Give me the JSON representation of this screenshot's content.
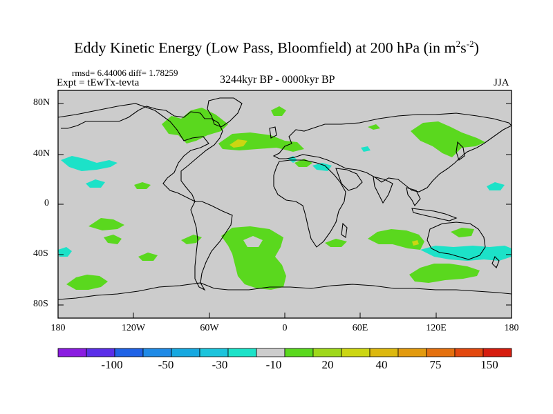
{
  "title": {
    "main": "Eddy Kinetic Energy (Low Pass, Bloomfield) at 200 hPa (in m",
    "sup1": "2",
    "s": "s",
    "sup2": "-2",
    "close": ")"
  },
  "stats": "rmsd= 6.44006  diff= 1.78259",
  "experiment": "Expt = tEwTx-tevta",
  "period": "3244kyr BP - 0000kyr BP",
  "season": "JJA",
  "axes": {
    "y_ticks": [
      "80N",
      "40N",
      "0",
      "40S",
      "80S"
    ],
    "x_ticks": [
      "180",
      "120W",
      "60W",
      "0",
      "60E",
      "120E",
      "180"
    ]
  },
  "colorbar": {
    "colors": [
      "#8a1ce0",
      "#5a2ee8",
      "#1f62e6",
      "#1f8ae6",
      "#16a8e0",
      "#1cc4dc",
      "#1ce2c8",
      "#cccccc",
      "#5ad81e",
      "#9ed81a",
      "#ccd612",
      "#dcb80e",
      "#e29a0e",
      "#e4700e",
      "#e2480e",
      "#d61c0e"
    ],
    "labels": [
      "-100",
      "-50",
      "-30",
      "-10",
      "20",
      "40",
      "75",
      "150"
    ]
  },
  "map_colors": {
    "land_sea": "#cccccc",
    "positive": "#5ad81e",
    "positive_strong": "#ccd612",
    "negative": "#1ce2c8"
  }
}
